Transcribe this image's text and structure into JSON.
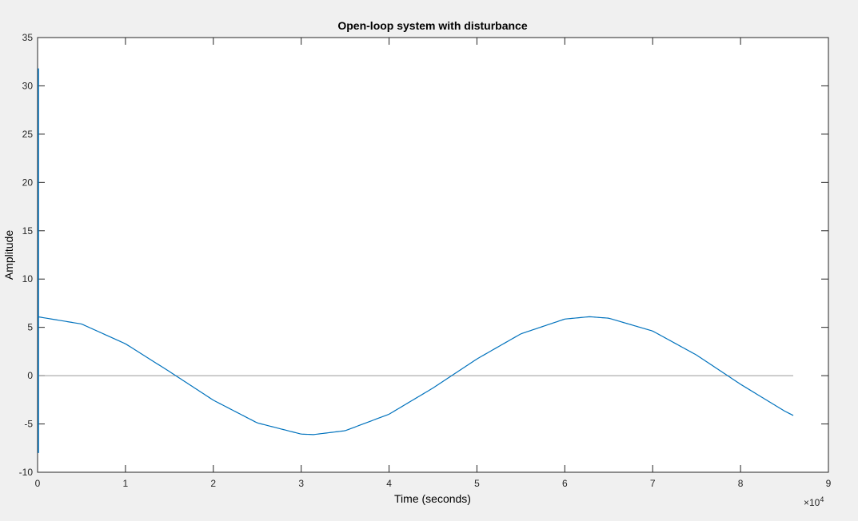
{
  "chart_data": {
    "type": "line",
    "title": "Open-loop system with disturbance",
    "xlabel": "Time (seconds)",
    "ylabel": "Amplitude",
    "x_exponent_label": "×10",
    "x_exponent_power": "4",
    "xlim": [
      0,
      9
    ],
    "ylim": [
      -10,
      35
    ],
    "x_ticks": [
      0,
      1,
      2,
      3,
      4,
      5,
      6,
      7,
      8,
      9
    ],
    "y_ticks": [
      -10,
      -5,
      0,
      5,
      10,
      15,
      20,
      25,
      30,
      35
    ],
    "grid": false,
    "colors": {
      "series": "#0072bd",
      "zero_line": "#999999",
      "axes": "#262626",
      "plot_bg": "#ffffff"
    },
    "series": [
      {
        "x": [
          0,
          0.5,
          1,
          1.5,
          2,
          2.5,
          3,
          3.14,
          3.5,
          4,
          4.5,
          5,
          5.5,
          6,
          6.28,
          6.5,
          7,
          7.5,
          8,
          8.5,
          8.6
        ],
        "values": [
          6.1,
          5.35,
          3.3,
          0.43,
          -2.54,
          -4.89,
          -6.05,
          -6.1,
          -5.7,
          -3.99,
          -1.28,
          1.73,
          4.33,
          5.86,
          6.1,
          5.95,
          4.62,
          2.13,
          -0.89,
          -3.66,
          -4.12
        ]
      }
    ],
    "initial_spike": {
      "x": 0,
      "y_min": -8,
      "y_max": 31.8
    },
    "reference_line": {
      "y": 0,
      "x_start": 0,
      "x_end": 8.6
    }
  }
}
